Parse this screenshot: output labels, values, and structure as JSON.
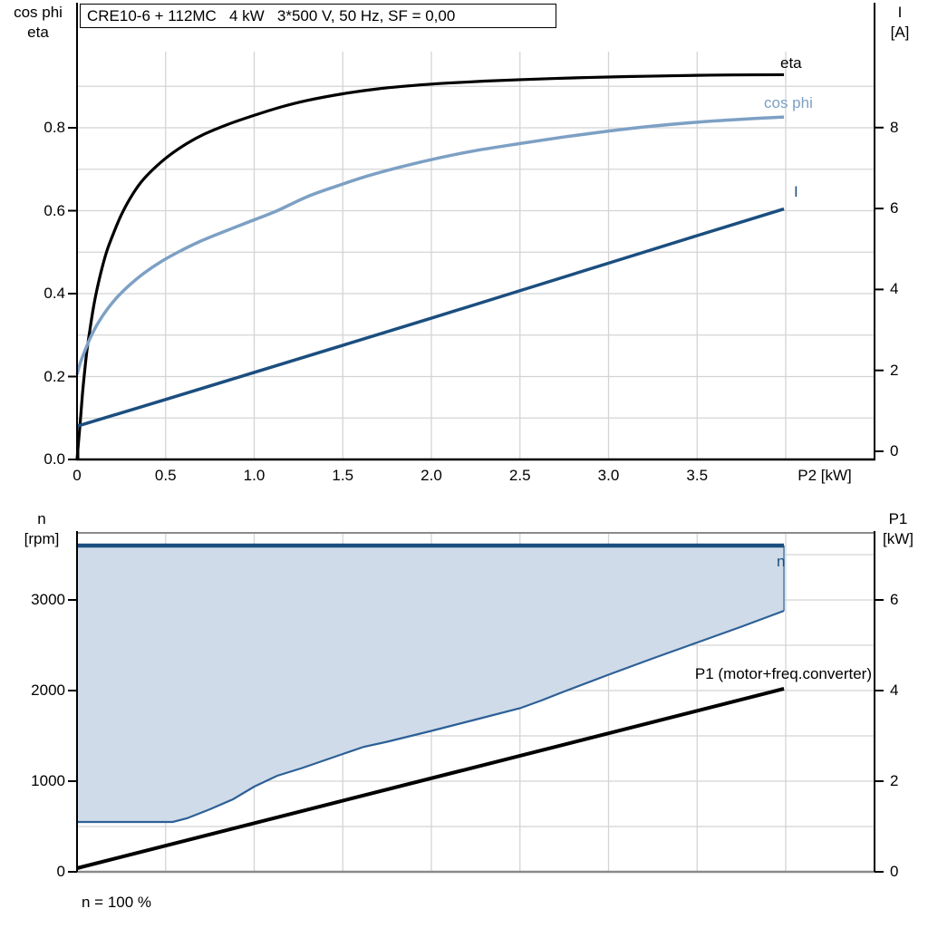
{
  "title": "CRE10-6 + 112MC   4 kW   3*500 V, 50 Hz, SF = 0,00",
  "colors": {
    "eta_curve": "#000000",
    "cos_phi_curve": "#7da0c4",
    "current_curve": "#1b4e7f",
    "n_curve": "#1b4e7f",
    "p1_curve": "#000000",
    "duty_region_fill": "#cfdbe9",
    "duty_region_border": "#2d6096",
    "grid": "#d4d4d4",
    "axis_black": "#000000",
    "axis_gray": "#8a8a8a"
  },
  "top_chart": {
    "left_axis_label_line1": "cos phi",
    "left_axis_label_line2": "eta",
    "right_axis_label_line1": "I",
    "right_axis_label_line2": "[A]",
    "x_axis_label": "P2 [kW]",
    "left_ticks": [
      "0.0",
      "0.2",
      "0.4",
      "0.6",
      "0.8"
    ],
    "right_ticks": [
      "0",
      "2",
      "4",
      "6",
      "8"
    ],
    "x_ticks": [
      "0",
      "0.5",
      "1.0",
      "1.5",
      "2.0",
      "2.5",
      "3.0",
      "3.5"
    ],
    "curve_labels": {
      "eta": "eta",
      "cos_phi": "cos phi",
      "current": "I"
    }
  },
  "bottom_chart": {
    "left_axis_label_line1": "n",
    "left_axis_label_line2": "[rpm]",
    "right_axis_label_line1": "P1",
    "right_axis_label_line2": "[kW]",
    "left_ticks": [
      "0",
      "1000",
      "2000",
      "3000"
    ],
    "right_ticks": [
      "0",
      "2",
      "4",
      "6"
    ],
    "footnote": "n = 100 %",
    "curve_labels": {
      "n": "n",
      "p1": "P1 (motor+freq.converter)"
    }
  },
  "chart_data": [
    {
      "type": "line",
      "title": "CRE10-6 + 112MC 4 kW 3*500 V, 50 Hz, SF = 0,00",
      "xlabel": "P2 [kW]",
      "x_range": [
        0,
        4.5
      ],
      "x_gridline_step": 0.5,
      "axes": {
        "left": {
          "label": "cos phi / eta",
          "range": [
            0,
            0.98
          ],
          "ticks": [
            0.0,
            0.2,
            0.4,
            0.6,
            0.8
          ],
          "gridline_step": 0.1
        },
        "right": {
          "label": "I [A]",
          "range": [
            0,
            9.8
          ],
          "ticks": [
            0,
            2,
            4,
            6,
            8
          ]
        }
      },
      "series": [
        {
          "name": "eta",
          "axis": "left",
          "smooth": true,
          "points": [
            [
              0,
              0
            ],
            [
              0.01,
              0.05
            ],
            [
              0.02,
              0.1
            ],
            [
              0.03,
              0.155
            ],
            [
              0.04,
              0.2
            ],
            [
              0.055,
              0.26
            ],
            [
              0.07,
              0.305
            ],
            [
              0.09,
              0.36
            ],
            [
              0.11,
              0.405
            ],
            [
              0.14,
              0.46
            ],
            [
              0.17,
              0.505
            ],
            [
              0.21,
              0.55
            ],
            [
              0.25,
              0.59
            ],
            [
              0.3,
              0.63
            ],
            [
              0.36,
              0.668
            ],
            [
              0.43,
              0.7
            ],
            [
              0.52,
              0.733
            ],
            [
              0.62,
              0.762
            ],
            [
              0.72,
              0.785
            ],
            [
              0.85,
              0.808
            ],
            [
              1.0,
              0.83
            ],
            [
              1.15,
              0.85
            ],
            [
              1.3,
              0.866
            ],
            [
              1.5,
              0.882
            ],
            [
              1.7,
              0.894
            ],
            [
              1.9,
              0.902
            ],
            [
              2.1,
              0.908
            ],
            [
              2.3,
              0.9125
            ],
            [
              2.5,
              0.916
            ],
            [
              2.7,
              0.919
            ],
            [
              2.9,
              0.9215
            ],
            [
              3.1,
              0.9235
            ],
            [
              3.3,
              0.925
            ],
            [
              3.5,
              0.9265
            ],
            [
              3.7,
              0.9275
            ],
            [
              3.99,
              0.928
            ]
          ]
        },
        {
          "name": "cos phi",
          "axis": "left",
          "smooth": true,
          "points": [
            [
              0,
              0.205
            ],
            [
              0.02,
              0.235
            ],
            [
              0.05,
              0.268
            ],
            [
              0.08,
              0.298
            ],
            [
              0.12,
              0.33
            ],
            [
              0.17,
              0.362
            ],
            [
              0.23,
              0.393
            ],
            [
              0.3,
              0.422
            ],
            [
              0.38,
              0.45
            ],
            [
              0.47,
              0.476
            ],
            [
              0.57,
              0.5
            ],
            [
              0.7,
              0.527
            ],
            [
              0.85,
              0.553
            ],
            [
              1.0,
              0.578
            ],
            [
              1.13,
              0.6
            ],
            [
              1.3,
              0.634
            ],
            [
              1.47,
              0.66
            ],
            [
              1.65,
              0.685
            ],
            [
              1.85,
              0.708
            ],
            [
              2.05,
              0.728
            ],
            [
              2.25,
              0.745
            ],
            [
              2.5,
              0.762
            ],
            [
              2.75,
              0.778
            ],
            [
              3.0,
              0.792
            ],
            [
              3.25,
              0.804
            ],
            [
              3.5,
              0.8135
            ],
            [
              3.75,
              0.8205
            ],
            [
              3.99,
              0.826
            ]
          ]
        },
        {
          "name": "I",
          "axis": "right",
          "smooth": false,
          "points": [
            [
              0,
              0.62
            ],
            [
              0.5,
              1.28
            ],
            [
              1.0,
              1.95
            ],
            [
              1.5,
              2.62
            ],
            [
              2.0,
              3.29
            ],
            [
              2.5,
              3.97
            ],
            [
              3.0,
              4.65
            ],
            [
              3.5,
              5.33
            ],
            [
              3.99,
              5.99
            ]
          ]
        }
      ]
    },
    {
      "type": "line-area",
      "xlabel": "P2 [kW]",
      "x_range": [
        0,
        4.5
      ],
      "x_gridline_step": 0.5,
      "axes": {
        "left": {
          "label": "n [rpm]",
          "range": [
            0,
            3740
          ],
          "ticks": [
            0,
            1000,
            2000,
            3000
          ],
          "gridline_step": 500
        },
        "right": {
          "label": "P1 [kW]",
          "range": [
            0,
            7.48
          ],
          "ticks": [
            0,
            2,
            4,
            6
          ]
        }
      },
      "series": [
        {
          "name": "n",
          "axis": "left",
          "smooth": false,
          "points": [
            [
              0,
              3600
            ],
            [
              3.99,
              3600
            ]
          ]
        },
        {
          "name": "n-range-lower",
          "axis": "left",
          "smooth": false,
          "points": [
            [
              0,
              550
            ],
            [
              0.54,
              550
            ],
            [
              0.62,
              590
            ],
            [
              0.75,
              690
            ],
            [
              0.88,
              800
            ],
            [
              1.0,
              940
            ],
            [
              1.13,
              1060
            ],
            [
              1.27,
              1145
            ],
            [
              1.5,
              1300
            ],
            [
              1.62,
              1380
            ],
            [
              1.75,
              1435
            ],
            [
              2.0,
              1555
            ],
            [
              2.25,
              1680
            ],
            [
              2.5,
              1805
            ],
            [
              2.62,
              1890
            ],
            [
              2.75,
              1990
            ],
            [
              3.0,
              2175
            ],
            [
              3.25,
              2355
            ],
            [
              3.5,
              2530
            ],
            [
              3.75,
              2705
            ],
            [
              3.99,
              2880
            ]
          ]
        },
        {
          "name": "P1 (motor+freq.converter)",
          "axis": "right",
          "smooth": false,
          "points": [
            [
              0,
              0.08
            ],
            [
              3.99,
              4.04
            ]
          ]
        }
      ],
      "shaded_region": {
        "between": [
          "n",
          "n-range-lower"
        ],
        "right_edge_x": 3.99
      },
      "footnote": "n = 100 %"
    }
  ]
}
